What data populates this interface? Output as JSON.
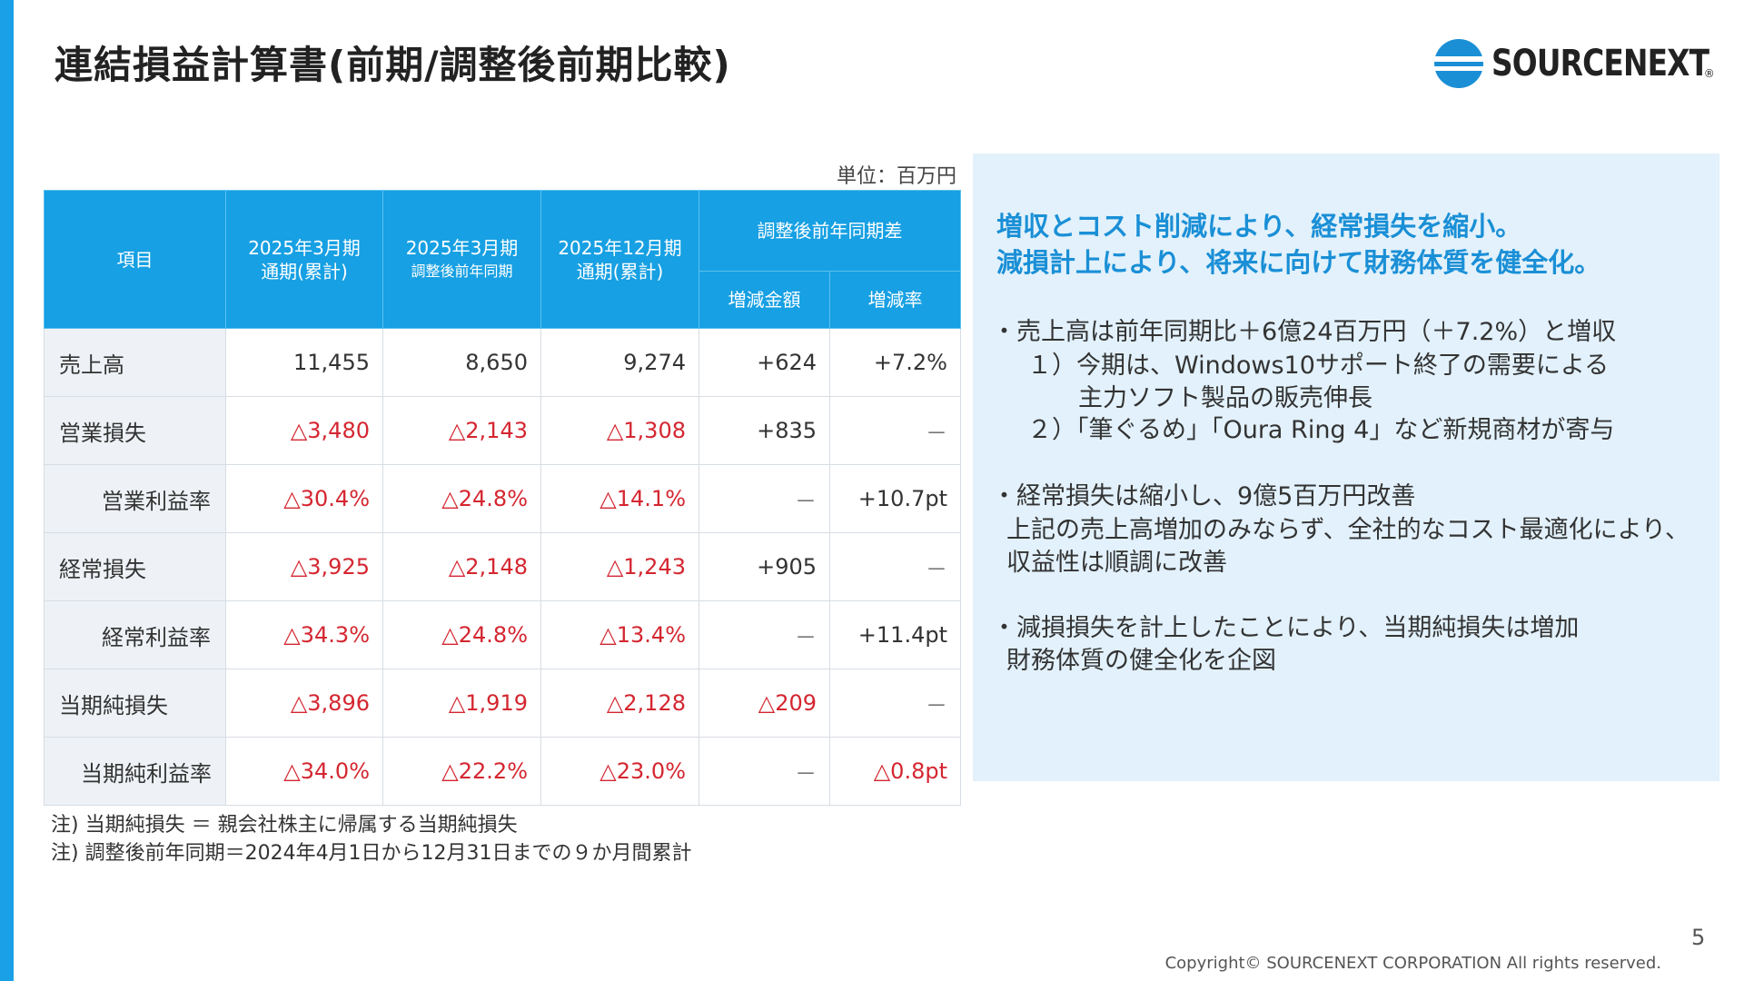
{
  "header": {
    "title": "連結損益計算書(前期/調整後前期比較)",
    "logo_text": "SOURCENEXT",
    "logo_mark": "®"
  },
  "unit": "単位：百万円",
  "table": {
    "item_header": "項目",
    "period_headers": [
      [
        "2025年3月期",
        "通期(累計)"
      ],
      [
        "2025年3月期",
        "調整後前年同期"
      ],
      [
        "2025年12月期",
        "通期(累計)"
      ]
    ],
    "diff_header": "調整後前年同期差",
    "diff_subheaders": [
      "増減金額",
      "増減率"
    ],
    "rows": [
      [
        "売上高",
        "11,455",
        "8,650",
        "9,274",
        "+624",
        "+7.2%"
      ],
      [
        "営業損失",
        "△3,480",
        "△2,143",
        "△1,308",
        "+835",
        "－"
      ],
      [
        "営業利益率",
        "△30.4%",
        "△24.8%",
        "△14.1%",
        "－",
        "+10.7pt"
      ],
      [
        "経常損失",
        "△3,925",
        "△2,148",
        "△1,243",
        "+905",
        "－"
      ],
      [
        "経常利益率",
        "△34.3%",
        "△24.8%",
        "△13.4%",
        "－",
        "+11.4pt"
      ],
      [
        "当期純損失",
        "△3,896",
        "△1,919",
        "△2,128",
        "△209",
        "－"
      ],
      [
        "当期純利益率",
        "△34.0%",
        "△22.2%",
        "△23.0%",
        "－",
        "△0.8pt"
      ]
    ]
  },
  "notes": [
    "注) 当期純損失 ＝ 親会社株主に帰属する当期純損失",
    "注) 調整後前年同期＝2024年4月1日から12月31日までの９か月間累計"
  ],
  "panel": {
    "headline": [
      "増収とコスト削減により、経常損失を縮小。",
      "減損計上により、将来に向けて財務体質を健全化。"
    ],
    "paragraphs": [
      [
        "・売上高は前年同期比＋6億24百万円（＋7.2%）と増収",
        "１）今期は、Windows10サポート終了の需要による",
        "主力ソフト製品の販売伸長",
        "２）「筆ぐるめ」「Oura Ring 4」など新規商材が寄与"
      ],
      [
        "・経常損失は縮小し、9億5百万円改善",
        "上記の売上高増加のみならず、全社的なコスト最適化により、",
        "収益性は順調に改善"
      ],
      [
        "・減損損失を計上したことにより、当期純損失は増加",
        "財務体質の健全化を企図"
      ]
    ]
  },
  "page_number": "5",
  "copyright": "Copyright© SOURCENEXT CORPORATION All rights reserved."
}
